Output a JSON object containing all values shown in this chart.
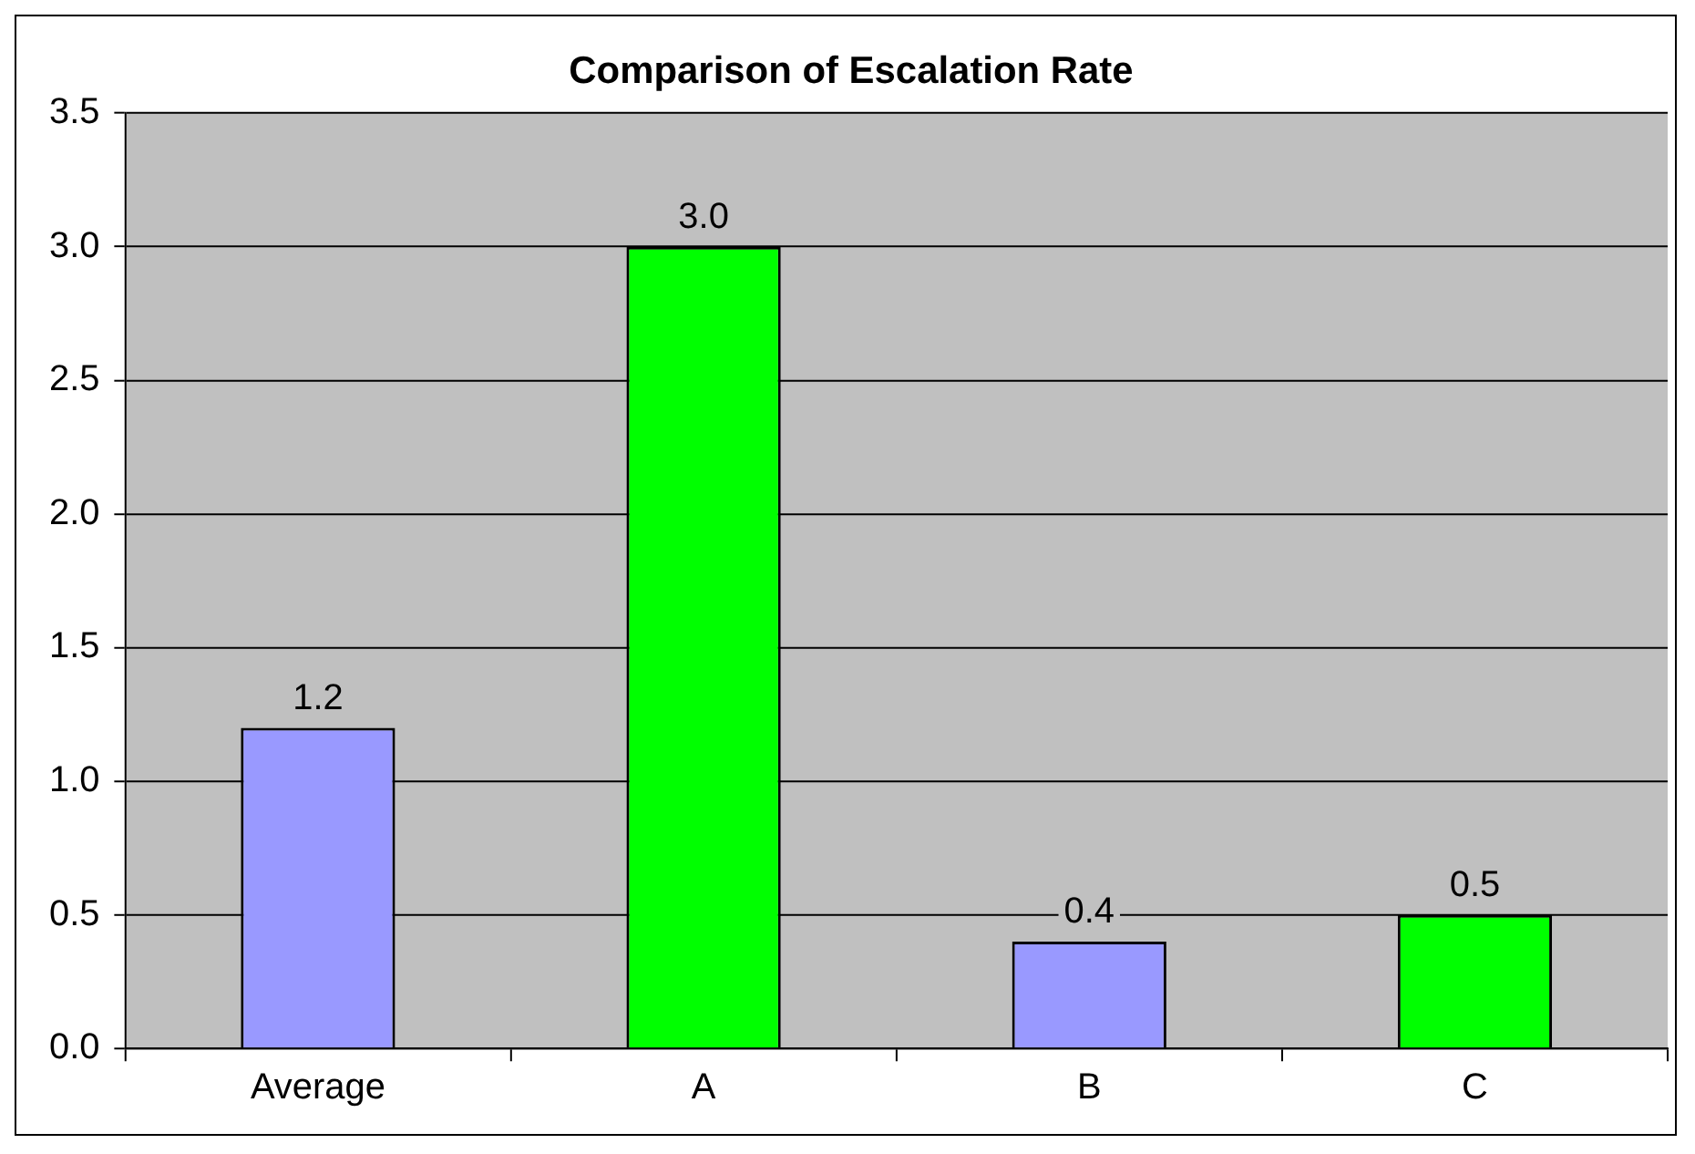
{
  "chart_data": {
    "type": "bar",
    "title": "Comparison of Escalation Rate",
    "categories": [
      "Average",
      "A",
      "B",
      "C"
    ],
    "values": [
      1.2,
      3.0,
      0.4,
      0.5
    ],
    "value_labels": [
      "1.2",
      "3.0",
      "0.4",
      "0.5"
    ],
    "colors": [
      "#9999ff",
      "#00ff00",
      "#9999ff",
      "#00ff00"
    ],
    "ylim": [
      0,
      3.5
    ],
    "yticks": [
      {
        "value": 0,
        "label": "0.0"
      },
      {
        "value": 0.5,
        "label": "0.5"
      },
      {
        "value": 1,
        "label": "1.0"
      },
      {
        "value": 1.5,
        "label": "1.5"
      },
      {
        "value": 2,
        "label": "2.0"
      },
      {
        "value": 2.5,
        "label": "2.5"
      },
      {
        "value": 3,
        "label": "3.0"
      },
      {
        "value": 3.5,
        "label": "3.5"
      }
    ],
    "grid": "y",
    "legend": false
  }
}
